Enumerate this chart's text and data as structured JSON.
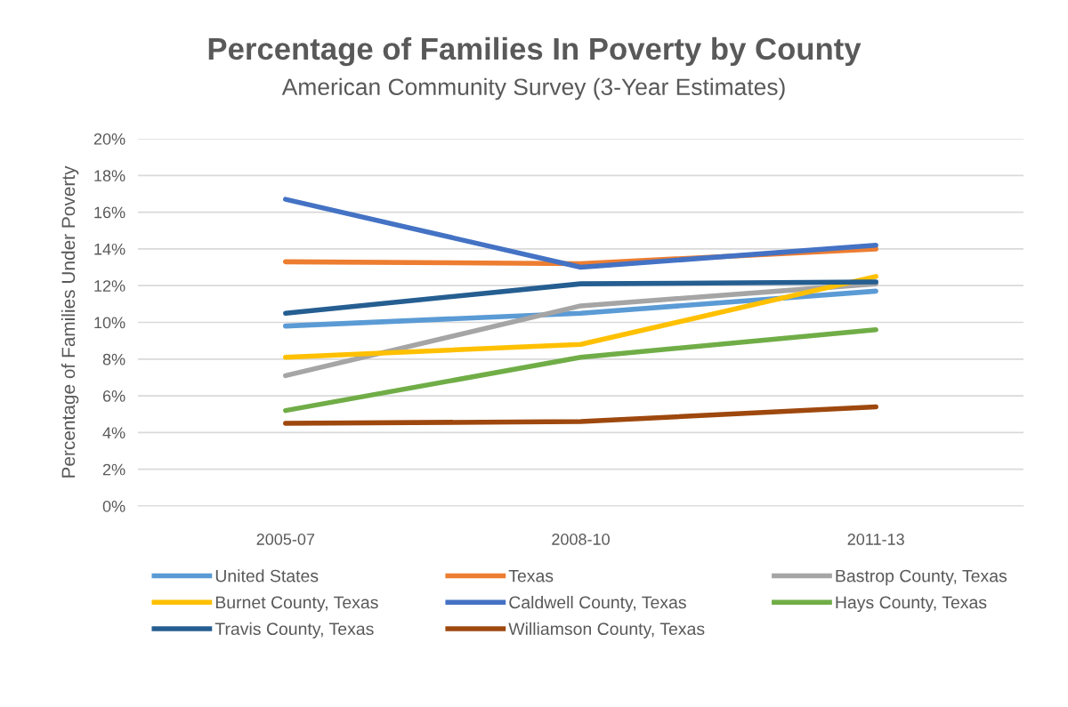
{
  "chart_data": {
    "type": "line",
    "title": "Percentage of Families In Poverty by County",
    "subtitle": "American Community Survey (3-Year Estimates)",
    "ylabel": "Percentage of Families Under Poverty",
    "categories": [
      "2005-07",
      "2008-10",
      "2011-13"
    ],
    "series": [
      {
        "name": "United States",
        "color": "#5b9bd5",
        "values": [
          9.8,
          10.5,
          11.7
        ]
      },
      {
        "name": "Texas",
        "color": "#ed7d31",
        "values": [
          13.3,
          13.2,
          14.0
        ]
      },
      {
        "name": "Bastrop County, Texas",
        "color": "#a5a5a5",
        "values": [
          7.1,
          10.9,
          12.1
        ]
      },
      {
        "name": "Burnet County, Texas",
        "color": "#ffc000",
        "values": [
          8.1,
          8.8,
          12.5
        ]
      },
      {
        "name": "Caldwell County, Texas",
        "color": "#4472c4",
        "values": [
          16.7,
          13.0,
          14.2
        ]
      },
      {
        "name": "Hays County, Texas",
        "color": "#70ad47",
        "values": [
          5.2,
          8.1,
          9.6
        ]
      },
      {
        "name": "Travis County, Texas",
        "color": "#255e91",
        "values": [
          10.5,
          12.1,
          12.2
        ]
      },
      {
        "name": "Williamson County, Texas",
        "color": "#9e480e",
        "values": [
          4.5,
          4.6,
          5.4
        ]
      }
    ],
    "ylim": [
      0,
      20
    ],
    "yticks": [
      {
        "value": 0,
        "label": "0%"
      },
      {
        "value": 2,
        "label": "2%"
      },
      {
        "value": 4,
        "label": "4%"
      },
      {
        "value": 6,
        "label": "6%"
      },
      {
        "value": 8,
        "label": "8%"
      },
      {
        "value": 10,
        "label": "10%"
      },
      {
        "value": 12,
        "label": "12%"
      },
      {
        "value": 14,
        "label": "14%"
      },
      {
        "value": 16,
        "label": "16%"
      },
      {
        "value": 18,
        "label": "18%"
      },
      {
        "value": 20,
        "label": "20%"
      }
    ],
    "grid": "y",
    "legend": "bottom",
    "marker": "none",
    "line_style": "solid"
  }
}
